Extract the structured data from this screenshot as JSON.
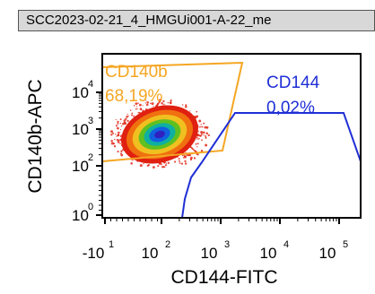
{
  "title": "SCC2023-02-21_4_HMGUi001-A-22_me",
  "chart_data": {
    "type": "scatter",
    "subtype": "flow-cytometry-density",
    "xlabel": "CD144-FITC",
    "ylabel": "CD140b-APC",
    "x_scale": "biexponential",
    "y_scale": "biexponential",
    "x_ticks": [
      {
        "value": -10,
        "label": "-10",
        "exp": "1"
      },
      {
        "value": 100,
        "label": "10",
        "exp": "2"
      },
      {
        "value": 1000,
        "label": "10",
        "exp": "3"
      },
      {
        "value": 10000,
        "label": "10",
        "exp": "4"
      },
      {
        "value": 100000,
        "label": "10",
        "exp": "5"
      }
    ],
    "y_ticks": [
      {
        "value": 1,
        "label": "10",
        "exp": "0"
      },
      {
        "value": 100,
        "label": "10",
        "exp": "2"
      },
      {
        "value": 1000,
        "label": "10",
        "exp": "3"
      },
      {
        "value": 10000,
        "label": "10",
        "exp": "4"
      }
    ],
    "gates": [
      {
        "name": "CD140b",
        "percent": "68,19%",
        "color": "#f5a623"
      },
      {
        "name": "CD144",
        "percent": "0,02%",
        "color": "#1f2fd6"
      }
    ],
    "population_colors": [
      "#e02010",
      "#f07010",
      "#f0c020",
      "#60c020",
      "#10b0a0",
      "#1060e0",
      "#3020c0"
    ],
    "grid": false,
    "legend": "none"
  }
}
